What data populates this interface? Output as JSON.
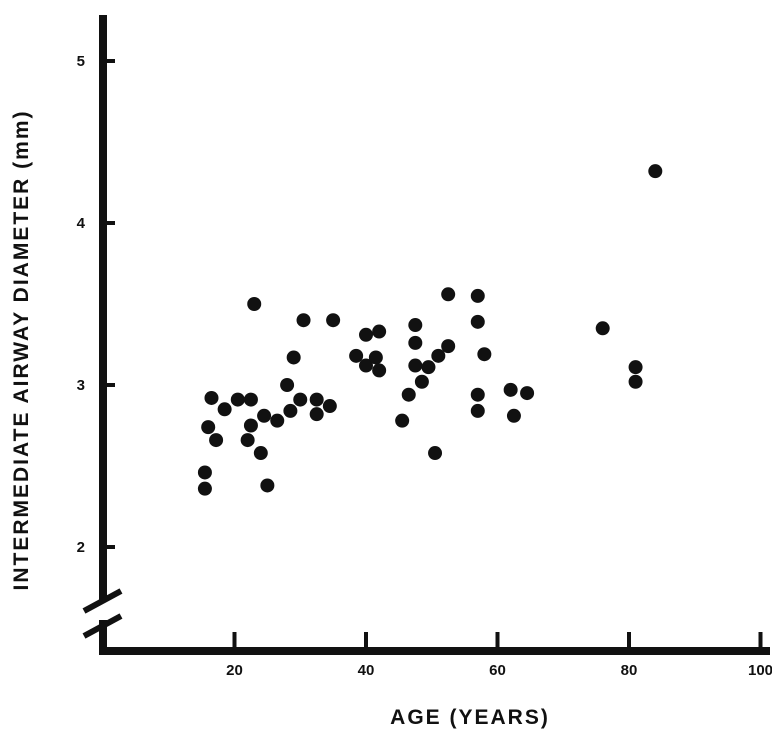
{
  "chart_data": {
    "type": "scatter",
    "xlabel": "AGE (YEARS)",
    "ylabel": "INTERMEDIATE AIRWAY DIAMETER (mm)",
    "xlim": [
      0,
      100
    ],
    "ylim": [
      1.5,
      5.3
    ],
    "x_ticks": [
      "20",
      "40",
      "60",
      "80",
      "100"
    ],
    "y_ticks": [
      "2",
      "3",
      "4",
      "5"
    ],
    "y_axis_break": true,
    "grid": false,
    "marker_color": "#111111",
    "points": [
      {
        "x": 15.5,
        "y": 2.46
      },
      {
        "x": 15.5,
        "y": 2.36
      },
      {
        "x": 16.0,
        "y": 2.74
      },
      {
        "x": 16.5,
        "y": 2.92
      },
      {
        "x": 17.2,
        "y": 2.66
      },
      {
        "x": 18.5,
        "y": 2.85
      },
      {
        "x": 20.5,
        "y": 2.91
      },
      {
        "x": 22.0,
        "y": 2.66
      },
      {
        "x": 22.5,
        "y": 2.75
      },
      {
        "x": 22.5,
        "y": 2.91
      },
      {
        "x": 23.0,
        "y": 3.5
      },
      {
        "x": 24.0,
        "y": 2.58
      },
      {
        "x": 24.5,
        "y": 2.81
      },
      {
        "x": 25.0,
        "y": 2.38
      },
      {
        "x": 26.5,
        "y": 2.78
      },
      {
        "x": 28.0,
        "y": 3.0
      },
      {
        "x": 28.5,
        "y": 2.84
      },
      {
        "x": 29.0,
        "y": 3.17
      },
      {
        "x": 30.0,
        "y": 2.91
      },
      {
        "x": 30.5,
        "y": 3.4
      },
      {
        "x": 32.5,
        "y": 2.91
      },
      {
        "x": 32.5,
        "y": 2.82
      },
      {
        "x": 34.5,
        "y": 2.87
      },
      {
        "x": 35.0,
        "y": 3.4
      },
      {
        "x": 38.5,
        "y": 3.18
      },
      {
        "x": 40.0,
        "y": 3.12
      },
      {
        "x": 40.0,
        "y": 3.31
      },
      {
        "x": 41.5,
        "y": 3.17
      },
      {
        "x": 42.0,
        "y": 3.09
      },
      {
        "x": 42.0,
        "y": 3.33
      },
      {
        "x": 45.5,
        "y": 2.78
      },
      {
        "x": 46.5,
        "y": 2.94
      },
      {
        "x": 47.5,
        "y": 3.12
      },
      {
        "x": 47.5,
        "y": 3.26
      },
      {
        "x": 47.5,
        "y": 3.37
      },
      {
        "x": 48.5,
        "y": 3.02
      },
      {
        "x": 49.5,
        "y": 3.11
      },
      {
        "x": 50.5,
        "y": 2.58
      },
      {
        "x": 51.0,
        "y": 3.18
      },
      {
        "x": 52.5,
        "y": 3.56
      },
      {
        "x": 52.5,
        "y": 3.24
      },
      {
        "x": 57.0,
        "y": 3.55
      },
      {
        "x": 57.0,
        "y": 3.39
      },
      {
        "x": 57.0,
        "y": 2.94
      },
      {
        "x": 57.0,
        "y": 2.84
      },
      {
        "x": 58.0,
        "y": 3.19
      },
      {
        "x": 62.0,
        "y": 2.97
      },
      {
        "x": 62.5,
        "y": 2.81
      },
      {
        "x": 64.5,
        "y": 2.95
      },
      {
        "x": 76.0,
        "y": 3.35
      },
      {
        "x": 81.0,
        "y": 3.11
      },
      {
        "x": 81.0,
        "y": 3.02
      },
      {
        "x": 84.0,
        "y": 4.32
      }
    ]
  }
}
